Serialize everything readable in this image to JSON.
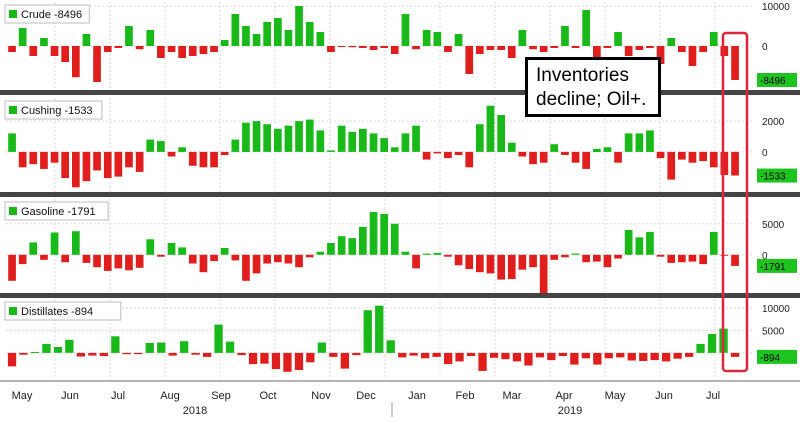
{
  "chart_data": {
    "type": "bar",
    "colors": {
      "positive": "#19b919",
      "negative": "#e01e1e",
      "highlight": "#e0243a",
      "tag_bg": "#1ec41e"
    },
    "months": [
      "May",
      "Jun",
      "Jul",
      "Aug",
      "Sep",
      "Oct",
      "Nov",
      "Dec",
      "Jan",
      "Feb",
      "Mar",
      "Apr",
      "May",
      "Jun",
      "Jul"
    ],
    "years": [
      "2018",
      "2019"
    ],
    "annotation": [
      "Inventories",
      "decline; Oil+."
    ],
    "panels": [
      {
        "legend": "Crude -8496",
        "last_value": "-8496",
        "ylim": [
          -11000,
          11000
        ],
        "ticks": [
          {
            "v": 10000,
            "label": "10000"
          },
          {
            "v": 0,
            "label": "0"
          }
        ],
        "values": [
          -1500,
          4500,
          -2500,
          2000,
          -2500,
          -4000,
          -7800,
          3000,
          -9000,
          -1500,
          -500,
          5000,
          -800,
          4000,
          -3000,
          -1500,
          -3000,
          -2500,
          -2000,
          -1500,
          1500,
          8000,
          5000,
          3000,
          6000,
          7000,
          4000,
          10000,
          6000,
          3500,
          -1500,
          -200,
          -300,
          -500,
          -1000,
          -500,
          -2000,
          8000,
          -800,
          4000,
          3500,
          -1500,
          3000,
          -7000,
          -2000,
          -1000,
          -1000,
          -3000,
          4000,
          -800,
          -1500,
          -500,
          5000,
          -500,
          9000,
          -3500,
          -500,
          3500,
          -2500,
          -1000,
          -500,
          -4500,
          2000,
          -1500,
          -5000,
          -1500,
          3500,
          -2500,
          -8496
        ]
      },
      {
        "legend": "Cushing -1533",
        "last_value": "-1533",
        "ylim": [
          -2600,
          3500
        ],
        "ticks": [
          {
            "v": 2000,
            "label": "2000"
          },
          {
            "v": 0,
            "label": "0"
          }
        ],
        "values": [
          1200,
          -1000,
          -800,
          -1100,
          -700,
          -1700,
          -2300,
          -1900,
          -1200,
          -1700,
          -1600,
          -1000,
          -1300,
          800,
          700,
          -300,
          300,
          -900,
          -1000,
          -1000,
          -200,
          800,
          1900,
          2000,
          1800,
          1500,
          1700,
          2000,
          2100,
          1400,
          100,
          1700,
          1300,
          1500,
          1200,
          900,
          300,
          1200,
          1700,
          -500,
          -100,
          -400,
          -200,
          -1000,
          1800,
          3000,
          2400,
          600,
          -300,
          -800,
          -700,
          500,
          -200,
          -700,
          -1100,
          200,
          300,
          -700,
          1200,
          1200,
          1400,
          -400,
          -1800,
          -500,
          -700,
          -600,
          -1000,
          -1500,
          -1533
        ]
      },
      {
        "legend": "Gasoline -1791",
        "last_value": "-1791",
        "ylim": [
          -6000,
          9000
        ],
        "ticks": [
          {
            "v": 5000,
            "label": "5000"
          },
          {
            "v": 0,
            "label": "0"
          }
        ],
        "values": [
          -4200,
          -1500,
          2000,
          -800,
          3600,
          -1200,
          3800,
          -1300,
          -2000,
          -2600,
          -2200,
          -2500,
          -2100,
          2500,
          -300,
          1900,
          1200,
          -1400,
          -2800,
          -1000,
          1100,
          -900,
          -4200,
          -3000,
          -1400,
          -1200,
          -1400,
          -2000,
          -400,
          500,
          1900,
          3000,
          2700,
          4500,
          6900,
          6600,
          5000,
          500,
          -2200,
          200,
          300,
          -300,
          -1700,
          -2300,
          -2800,
          -3000,
          -4000,
          -3900,
          -2400,
          -2000,
          -6700,
          -800,
          -400,
          200,
          -1200,
          -1100,
          -2000,
          -600,
          4000,
          2800,
          3700,
          -300,
          -1300,
          -1200,
          -1100,
          -1500,
          3700,
          -100,
          -1791
        ]
      },
      {
        "legend": "Distillates -894",
        "last_value": "-894",
        "ylim": [
          -5600,
          12000
        ],
        "ticks": [
          {
            "v": 10000,
            "label": "10000"
          },
          {
            "v": 5000,
            "label": "5000"
          },
          {
            "v": 0,
            "label": "0"
          }
        ],
        "values": [
          -3000,
          -400,
          200,
          2000,
          1300,
          2900,
          -800,
          -600,
          -700,
          3700,
          -300,
          -300,
          2200,
          2300,
          -600,
          2600,
          -400,
          -900,
          6300,
          2500,
          -500,
          -2500,
          -2400,
          -3600,
          -4200,
          -3800,
          -2100,
          2300,
          -900,
          -3500,
          -500,
          9500,
          10500,
          2800,
          -1000,
          -600,
          -1200,
          -900,
          -2500,
          -1900,
          -700,
          -4000,
          -1100,
          -1400,
          -1900,
          -2800,
          -1000,
          -1600,
          -700,
          -2600,
          -1200,
          -2600,
          -1200,
          -1000,
          -1700,
          -1800,
          -1600,
          -1900,
          -1300,
          -900,
          2000,
          4200,
          5400,
          -894
        ]
      }
    ]
  }
}
